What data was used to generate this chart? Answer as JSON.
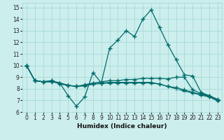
{
  "xlabel": "Humidex (Indice chaleur)",
  "bg_color": "#cceeed",
  "grid_color": "#aaddda",
  "line_color1": "#006b6b",
  "line_color2": "#006b6b",
  "line_color3": "#006b6b",
  "line_color4": "#006b6b",
  "xlim": [
    -0.5,
    23.5
  ],
  "ylim": [
    6,
    15.4
  ],
  "xticks": [
    0,
    1,
    2,
    3,
    4,
    5,
    6,
    7,
    8,
    9,
    10,
    11,
    12,
    13,
    14,
    15,
    16,
    17,
    18,
    19,
    20,
    21,
    22,
    23
  ],
  "yticks": [
    6,
    7,
    8,
    9,
    10,
    11,
    12,
    13,
    14,
    15
  ],
  "curve1_x": [
    0,
    1,
    2,
    3,
    4,
    5,
    6,
    7,
    8,
    9,
    10,
    11,
    12,
    13,
    14,
    15,
    16,
    17,
    18,
    19,
    20,
    21,
    22,
    23
  ],
  "curve1_y": [
    10.0,
    8.7,
    8.6,
    8.7,
    8.5,
    7.4,
    6.5,
    7.3,
    9.4,
    8.5,
    11.5,
    12.2,
    13.0,
    12.5,
    14.0,
    14.8,
    13.3,
    11.8,
    10.5,
    9.2,
    9.1,
    7.7,
    7.4,
    7.0
  ],
  "curve2_x": [
    0,
    1,
    2,
    3,
    4,
    5,
    6,
    7,
    8,
    9,
    10,
    11,
    12,
    13,
    14,
    15,
    16,
    17,
    18,
    19,
    20,
    21,
    22,
    23
  ],
  "curve2_y": [
    10.0,
    8.7,
    8.6,
    8.7,
    8.4,
    8.3,
    8.2,
    8.35,
    8.5,
    8.6,
    8.7,
    8.7,
    8.8,
    8.8,
    8.9,
    8.9,
    8.9,
    8.85,
    9.0,
    9.0,
    7.9,
    7.6,
    7.4,
    7.1
  ],
  "curve3_x": [
    0,
    1,
    2,
    3,
    4,
    5,
    6,
    7,
    8,
    9,
    10,
    11,
    12,
    13,
    14,
    15,
    16,
    17,
    18,
    19,
    20,
    21,
    22,
    23
  ],
  "curve3_y": [
    10.0,
    8.7,
    8.6,
    8.6,
    8.5,
    8.3,
    8.2,
    8.3,
    8.4,
    8.5,
    8.55,
    8.55,
    8.55,
    8.55,
    8.55,
    8.55,
    8.4,
    8.2,
    8.1,
    7.9,
    7.7,
    7.5,
    7.35,
    7.0
  ],
  "curve4_x": [
    0,
    1,
    2,
    3,
    4,
    5,
    6,
    7,
    8,
    9,
    10,
    11,
    12,
    13,
    14,
    15,
    16,
    17,
    18,
    19,
    20,
    21,
    22,
    23
  ],
  "curve4_y": [
    10.0,
    8.7,
    8.6,
    8.6,
    8.5,
    8.3,
    8.2,
    8.25,
    8.4,
    8.45,
    8.5,
    8.5,
    8.5,
    8.5,
    8.5,
    8.5,
    8.4,
    8.2,
    8.0,
    7.8,
    7.65,
    7.45,
    7.3,
    6.95
  ]
}
